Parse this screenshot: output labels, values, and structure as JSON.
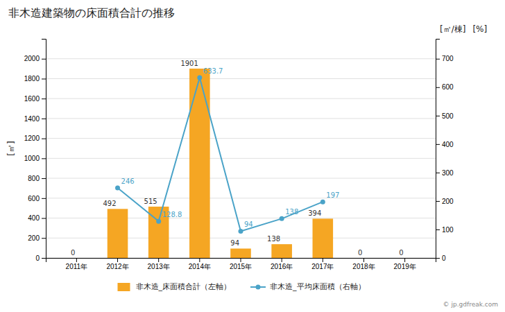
{
  "chart_data": {
    "type": "bar",
    "title": "非木造建築物の床面積合計の推移",
    "categories": [
      "2011年",
      "2012年",
      "2013年",
      "2014年",
      "2015年",
      "2016年",
      "2017年",
      "2018年",
      "2019年"
    ],
    "series": [
      {
        "name": "非木造_床面積合計（左軸）",
        "type": "bar",
        "color": "#f5a623",
        "values": [
          0,
          492,
          515,
          1901,
          94,
          138,
          394,
          0,
          0
        ]
      },
      {
        "name": "非木造_平均床面積（右軸）",
        "type": "line",
        "axis": "y2",
        "color": "#4aa3c8",
        "marker": "circle",
        "values": [
          null,
          246,
          128.8,
          633.7,
          94,
          138,
          197,
          null,
          null
        ]
      }
    ],
    "ylabel": "[㎡]",
    "y2label": [
      "[㎡/棟]",
      "[%]"
    ],
    "ylim": [
      0,
      2200
    ],
    "yticks": [
      0,
      200,
      400,
      600,
      800,
      1000,
      1200,
      1400,
      1600,
      1800,
      2000
    ],
    "y2lim": [
      0,
      770
    ],
    "y2ticks": [
      0,
      100,
      200,
      300,
      400,
      500,
      600,
      700
    ],
    "grid": true,
    "legend": "bottom",
    "data_labels": true,
    "annotations": [
      "© jp.gdfreak.com"
    ]
  }
}
